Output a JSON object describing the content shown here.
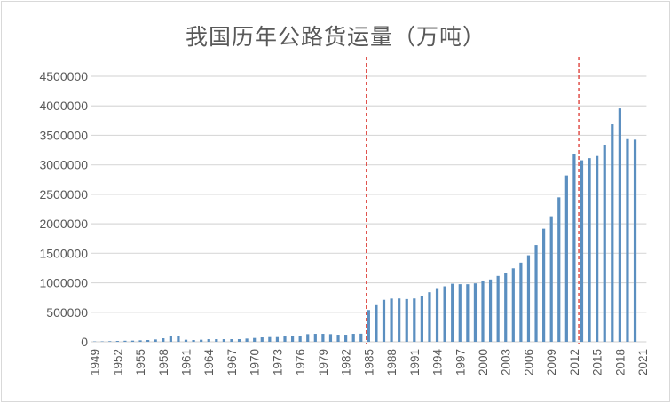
{
  "chart_data": {
    "type": "bar",
    "title": "我国历年公路货运量（万吨）",
    "xlabel": "",
    "ylabel": "",
    "ylim": [
      0,
      4500000
    ],
    "yticks": [
      "0",
      "500000",
      "1000000",
      "1500000",
      "2000000",
      "2500000",
      "3000000",
      "3500000",
      "4000000",
      "4500000"
    ],
    "xtick_labels": [
      "1949",
      "1952",
      "1955",
      "1958",
      "1961",
      "1964",
      "1967",
      "1970",
      "1973",
      "1976",
      "1979",
      "1982",
      "1985",
      "1988",
      "1991",
      "1994",
      "1997",
      "2000",
      "2003",
      "2006",
      "2009",
      "2012",
      "2015",
      "2018",
      "2021"
    ],
    "grid": true,
    "bar_color": "#5b8fc0",
    "reference_line_color": "#e0504a",
    "reference_lines": [
      "1985",
      "2013"
    ],
    "categories": [
      "1949",
      "1950",
      "1951",
      "1952",
      "1953",
      "1954",
      "1955",
      "1956",
      "1957",
      "1958",
      "1959",
      "1960",
      "1961",
      "1962",
      "1963",
      "1964",
      "1965",
      "1966",
      "1967",
      "1968",
      "1969",
      "1970",
      "1971",
      "1972",
      "1973",
      "1974",
      "1975",
      "1976",
      "1977",
      "1978",
      "1979",
      "1980",
      "1981",
      "1982",
      "1983",
      "1984",
      "1985",
      "1986",
      "1987",
      "1988",
      "1989",
      "1990",
      "1991",
      "1992",
      "1993",
      "1994",
      "1995",
      "1996",
      "1997",
      "1998",
      "1999",
      "2000",
      "2001",
      "2002",
      "2003",
      "2004",
      "2005",
      "2006",
      "2007",
      "2008",
      "2009",
      "2010",
      "2011",
      "2012",
      "2013",
      "2014",
      "2015",
      "2016",
      "2017",
      "2018",
      "2019",
      "2020",
      "2021"
    ],
    "values": [
      5790,
      7130,
      10480,
      15000,
      18000,
      20000,
      25000,
      30000,
      40000,
      60000,
      105000,
      105000,
      35000,
      30000,
      35000,
      45000,
      45000,
      45000,
      45000,
      45000,
      55000,
      65000,
      75000,
      80000,
      80000,
      90000,
      100000,
      105000,
      130000,
      135000,
      135000,
      130000,
      120000,
      120000,
      135000,
      137000,
      538062,
      620113,
      711424,
      732315,
      733781,
      724040,
      733907,
      780941,
      840256,
      894914,
      940387,
      983860,
      976536,
      976004,
      990444,
      1038813,
      1056312,
      1116324,
      1159957,
      1244990,
      1341778,
      1466347,
      1639432,
      1916759,
      2127834,
      2448052,
      2820100,
      3188475,
      3076648,
      3113334,
      3150019,
      3341259,
      3686858,
      3956871,
      3435480,
      3426413,
      null
    ]
  }
}
